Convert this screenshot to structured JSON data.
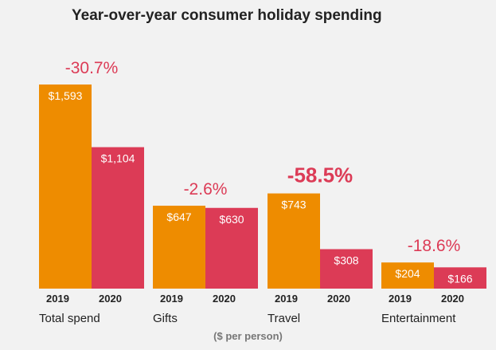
{
  "chart_data": {
    "type": "bar",
    "title": "Year-over-year consumer holiday spending",
    "subtitle": "($ per person)",
    "groups": [
      "Total spend",
      "Gifts",
      "Travel",
      "Entertainment"
    ],
    "years": [
      "2019",
      "2020"
    ],
    "series": [
      {
        "name": "2019",
        "values": [
          1593,
          647,
          743,
          204
        ],
        "labels": [
          "$1,593",
          "$647",
          "$743",
          "$204"
        ]
      },
      {
        "name": "2020",
        "values": [
          1104,
          630,
          308,
          166
        ],
        "labels": [
          "$1,104",
          "$630",
          "$308",
          "$166"
        ]
      }
    ],
    "changes": [
      "-30.7%",
      "-2.6%",
      "-58.5%",
      "-18.6%"
    ],
    "highlight_change_index": 2,
    "ylim": [
      0,
      1593
    ],
    "legend": "none",
    "grid": false,
    "colors": {
      "2019": "#ee8c00",
      "2020": "#dc3b56",
      "change": "#dc3b56",
      "background": "#f2f2f2",
      "text": "#222222"
    }
  }
}
